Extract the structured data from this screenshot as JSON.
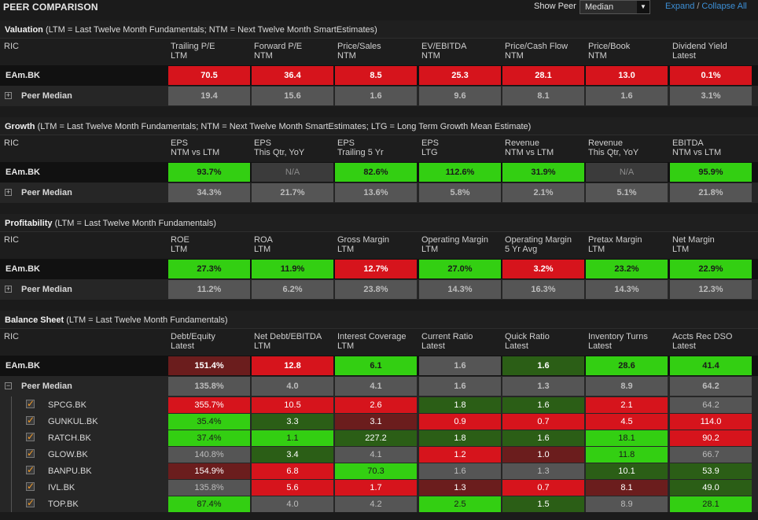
{
  "app": {
    "title": "PEER COMPARISON",
    "show_peer_label": "Show Peer",
    "show_peer_value": "Median",
    "expand": "Expand",
    "separator": "/",
    "collapse": "Collapse All"
  },
  "ric_label": "RIC",
  "main_label": "EAm.BK",
  "median_label": "Peer Median",
  "sections": [
    {
      "title": "Valuation",
      "note": "(LTM = Last Twelve Month Fundamentals; NTM = Next Twelve Month SmartEstimates)",
      "columns": [
        [
          "Trailing P/E",
          "LTM"
        ],
        [
          "Forward P/E",
          "NTM"
        ],
        [
          "Price/Sales",
          "NTM"
        ],
        [
          "EV/EBITDA",
          "NTM"
        ],
        [
          "Price/Cash Flow",
          "NTM"
        ],
        [
          "Price/Book",
          "NTM"
        ],
        [
          "Dividend Yield",
          "Latest"
        ]
      ],
      "main": [
        [
          "70.5",
          "red"
        ],
        [
          "36.4",
          "red"
        ],
        [
          "8.5",
          "red"
        ],
        [
          "25.3",
          "red"
        ],
        [
          "28.1",
          "red"
        ],
        [
          "13.0",
          "red"
        ],
        [
          "0.1%",
          "red"
        ]
      ],
      "median": [
        [
          "19.4",
          "grey"
        ],
        [
          "15.6",
          "grey"
        ],
        [
          "1.6",
          "grey"
        ],
        [
          "9.6",
          "grey"
        ],
        [
          "8.1",
          "grey"
        ],
        [
          "1.6",
          "grey"
        ],
        [
          "3.1%",
          "grey"
        ]
      ]
    },
    {
      "title": "Growth",
      "note": "(LTM = Last Twelve Month Fundamentals; NTM = Next Twelve Month SmartEstimates; LTG = Long Term Growth Mean Estimate)",
      "columns": [
        [
          "EPS",
          "NTM vs LTM"
        ],
        [
          "EPS",
          "This Qtr, YoY"
        ],
        [
          "EPS",
          "Trailing 5 Yr"
        ],
        [
          "EPS",
          "LTG"
        ],
        [
          "Revenue",
          "NTM vs LTM"
        ],
        [
          "Revenue",
          "This Qtr, YoY"
        ],
        [
          "EBITDA",
          "NTM vs LTM"
        ]
      ],
      "main": [
        [
          "93.7%",
          "green"
        ],
        [
          "N/A",
          "na"
        ],
        [
          "82.6%",
          "green"
        ],
        [
          "112.6%",
          "green"
        ],
        [
          "31.9%",
          "green"
        ],
        [
          "N/A",
          "na"
        ],
        [
          "95.9%",
          "green"
        ]
      ],
      "median": [
        [
          "34.3%",
          "grey"
        ],
        [
          "21.7%",
          "grey"
        ],
        [
          "13.6%",
          "grey"
        ],
        [
          "5.8%",
          "grey"
        ],
        [
          "2.1%",
          "grey"
        ],
        [
          "5.1%",
          "grey"
        ],
        [
          "21.8%",
          "grey"
        ]
      ]
    },
    {
      "title": "Profitability",
      "note": "(LTM = Last Twelve Month Fundamentals)",
      "columns": [
        [
          "ROE",
          "LTM"
        ],
        [
          "ROA",
          "LTM"
        ],
        [
          "Gross Margin",
          "LTM"
        ],
        [
          "Operating Margin",
          "LTM"
        ],
        [
          "Operating Margin",
          "5 Yr Avg"
        ],
        [
          "Pretax Margin",
          "LTM"
        ],
        [
          "Net Margin",
          "LTM"
        ]
      ],
      "main": [
        [
          "27.3%",
          "green"
        ],
        [
          "11.9%",
          "green"
        ],
        [
          "12.7%",
          "red"
        ],
        [
          "27.0%",
          "green"
        ],
        [
          "3.2%",
          "red"
        ],
        [
          "23.2%",
          "green"
        ],
        [
          "22.9%",
          "green"
        ]
      ],
      "median": [
        [
          "11.2%",
          "grey"
        ],
        [
          "6.2%",
          "grey"
        ],
        [
          "23.8%",
          "grey"
        ],
        [
          "14.3%",
          "grey"
        ],
        [
          "16.3%",
          "grey"
        ],
        [
          "14.3%",
          "grey"
        ],
        [
          "12.3%",
          "grey"
        ]
      ]
    },
    {
      "title": "Balance Sheet",
      "note": "(LTM = Last Twelve Month Fundamentals)",
      "columns": [
        [
          "Debt/Equity",
          "Latest"
        ],
        [
          "Net Debt/EBITDA",
          "LTM"
        ],
        [
          "Interest Coverage",
          "LTM"
        ],
        [
          "Current Ratio",
          "Latest"
        ],
        [
          "Quick Ratio",
          "Latest"
        ],
        [
          "Inventory Turns",
          "Latest"
        ],
        [
          "Accts Rec DSO",
          "Latest"
        ]
      ],
      "main": [
        [
          "151.4%",
          "darkred"
        ],
        [
          "12.8",
          "red"
        ],
        [
          "6.1",
          "green"
        ],
        [
          "1.6",
          "grey"
        ],
        [
          "1.6",
          "darkgreen"
        ],
        [
          "28.6",
          "green"
        ],
        [
          "41.4",
          "green"
        ]
      ],
      "median": [
        [
          "135.8%",
          "grey"
        ],
        [
          "4.0",
          "grey"
        ],
        [
          "4.1",
          "grey"
        ],
        [
          "1.6",
          "grey"
        ],
        [
          "1.3",
          "grey"
        ],
        [
          "8.9",
          "grey"
        ],
        [
          "64.2",
          "grey"
        ]
      ],
      "peers": [
        {
          "name": "SPCG.BK",
          "cells": [
            [
              "355.7%",
              "red"
            ],
            [
              "10.5",
              "red"
            ],
            [
              "2.6",
              "red"
            ],
            [
              "1.8",
              "darkgreen"
            ],
            [
              "1.6",
              "darkgreen"
            ],
            [
              "2.1",
              "red"
            ],
            [
              "64.2",
              "grey"
            ]
          ]
        },
        {
          "name": "GUNKUL.BK",
          "cells": [
            [
              "35.4%",
              "green"
            ],
            [
              "3.3",
              "darkgreen"
            ],
            [
              "3.1",
              "darkred"
            ],
            [
              "0.9",
              "red"
            ],
            [
              "0.7",
              "red"
            ],
            [
              "4.5",
              "red"
            ],
            [
              "114.0",
              "red"
            ]
          ]
        },
        {
          "name": "RATCH.BK",
          "cells": [
            [
              "37.4%",
              "green"
            ],
            [
              "1.1",
              "green"
            ],
            [
              "227.2",
              "darkgreen"
            ],
            [
              "1.8",
              "darkgreen"
            ],
            [
              "1.6",
              "darkgreen"
            ],
            [
              "18.1",
              "green"
            ],
            [
              "90.2",
              "red"
            ]
          ]
        },
        {
          "name": "GLOW.BK",
          "cells": [
            [
              "140.8%",
              "grey"
            ],
            [
              "3.4",
              "darkgreen"
            ],
            [
              "4.1",
              "grey"
            ],
            [
              "1.2",
              "red"
            ],
            [
              "1.0",
              "darkred"
            ],
            [
              "11.8",
              "green"
            ],
            [
              "66.7",
              "grey"
            ]
          ]
        },
        {
          "name": "BANPU.BK",
          "cells": [
            [
              "154.9%",
              "darkred"
            ],
            [
              "6.8",
              "red"
            ],
            [
              "70.3",
              "green"
            ],
            [
              "1.6",
              "grey"
            ],
            [
              "1.3",
              "grey"
            ],
            [
              "10.1",
              "darkgreen"
            ],
            [
              "53.9",
              "darkgreen"
            ]
          ]
        },
        {
          "name": "IVL.BK",
          "cells": [
            [
              "135.8%",
              "grey"
            ],
            [
              "5.6",
              "red"
            ],
            [
              "1.7",
              "red"
            ],
            [
              "1.3",
              "darkred"
            ],
            [
              "0.7",
              "red"
            ],
            [
              "8.1",
              "darkred"
            ],
            [
              "49.0",
              "darkgreen"
            ]
          ]
        },
        {
          "name": "TOP.BK",
          "cells": [
            [
              "87.4%",
              "green"
            ],
            [
              "4.0",
              "grey"
            ],
            [
              "4.2",
              "grey"
            ],
            [
              "2.5",
              "green"
            ],
            [
              "1.5",
              "darkgreen"
            ],
            [
              "8.9",
              "grey"
            ],
            [
              "28.1",
              "green"
            ]
          ]
        }
      ]
    }
  ]
}
